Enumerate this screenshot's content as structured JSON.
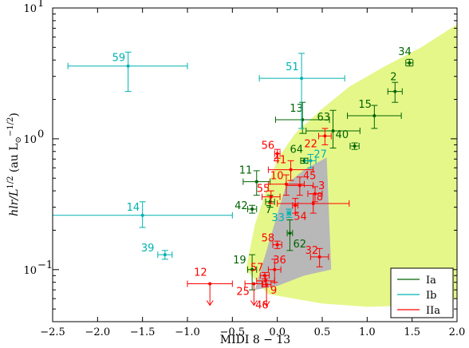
{
  "chart_data": {
    "type": "scatter",
    "title": "",
    "xlabel": "MIDI 8 − 13",
    "ylabel_parts": {
      "main": "hlr/L",
      "exp": "1/2",
      "unit_open": " (au L",
      "unit_sub": "⊙",
      "unit_exp": "−1/2",
      "unit_close": ")"
    },
    "xlim": [
      -2.5,
      2.0
    ],
    "ylim_log": [
      0.04,
      10
    ],
    "y_scale": "log",
    "x_ticks": [
      -2.5,
      -2.0,
      -1.5,
      -1.0,
      -0.5,
      0.0,
      0.5,
      1.0,
      1.5,
      2.0
    ],
    "x_tick_labels": [
      "−2.5",
      "−2.0",
      "−1.5",
      "−1.0",
      "−0.5",
      "0.0",
      "0.5",
      "1.0",
      "1.5",
      "2.0"
    ],
    "y_ticks": [
      0.1,
      1,
      10
    ],
    "y_tick_labels": [
      "10",
      "10",
      "10"
    ],
    "y_tick_exponents": [
      "−1",
      "0",
      "1"
    ],
    "legend": {
      "placement": "bottom-right",
      "entries": [
        {
          "name": "Ia",
          "color": "#006400"
        },
        {
          "name": "Ib",
          "color": "#00b2b2"
        },
        {
          "name": "IIa",
          "color": "#ff0000"
        }
      ]
    },
    "colors": {
      "Ia": "#006400",
      "Ib": "#00b2b2",
      "IIa": "#ff0000",
      "yellow_region": "#e6f78a",
      "gray_region": "#b8b8b8"
    },
    "regions": {
      "yellow": {
        "upper": [
          [
            -0.35,
            0.1
          ],
          [
            -0.25,
            0.22
          ],
          [
            -0.1,
            0.45
          ],
          [
            0.0,
            0.7
          ],
          [
            0.2,
            1.1
          ],
          [
            0.5,
            1.7
          ],
          [
            0.8,
            2.5
          ],
          [
            1.2,
            3.6
          ],
          [
            1.6,
            5.0
          ],
          [
            2.0,
            7.5
          ]
        ],
        "lower": [
          [
            -0.35,
            0.1
          ],
          [
            -0.1,
            0.065
          ],
          [
            0.5,
            0.055
          ],
          [
            1.0,
            0.052
          ],
          [
            1.5,
            0.053
          ],
          [
            2.0,
            0.06
          ]
        ]
      },
      "gray": [
        [
          -0.25,
          0.07
        ],
        [
          0.1,
          0.45
        ],
        [
          0.3,
          0.58
        ],
        [
          0.55,
          0.72
        ],
        [
          0.6,
          0.1
        ],
        [
          0.3,
          0.09
        ],
        [
          0.0,
          0.075
        ],
        [
          -0.25,
          0.07
        ]
      ]
    },
    "series": [
      {
        "name": "Ia",
        "points": [
          {
            "label": "34",
            "x": 1.47,
            "y": 3.8,
            "xerr": 0.04,
            "yerr_lo": 0.2,
            "yerr_hi": 0.25
          },
          {
            "label": "2",
            "x": 1.31,
            "y": 2.3,
            "xerr": 0.08,
            "yerr_lo": 0.4,
            "yerr_hi": 0.4
          },
          {
            "label": "15",
            "x": 1.08,
            "y": 1.5,
            "xerr": 0.3,
            "yerr_lo": 0.3,
            "yerr_hi": 0.3
          },
          {
            "label": "13",
            "x": 0.28,
            "y": 1.4,
            "xerr": 0.3,
            "yerr_lo": 0.3,
            "yerr_hi": 0.5
          },
          {
            "label": "63",
            "x": 0.62,
            "y": 1.15,
            "xerr": 0.3,
            "yerr_lo": 0.3,
            "yerr_hi": 0.5
          },
          {
            "label": "40",
            "x": 0.86,
            "y": 0.88,
            "xerr": 0.05,
            "yerr_lo": 0.05,
            "yerr_hi": 0.05
          },
          {
            "label": "64",
            "x": 0.3,
            "y": 0.68,
            "xerr": 0.04,
            "yerr_lo": 0.03,
            "yerr_hi": 0.03
          },
          {
            "label": "11",
            "x": -0.23,
            "y": 0.47,
            "xerr": 0.15,
            "yerr_lo": 0.1,
            "yerr_hi": 0.1
          },
          {
            "label": "42",
            "x": -0.28,
            "y": 0.29,
            "xerr": 0.05,
            "yerr_lo": 0.02,
            "yerr_hi": 0.02
          },
          {
            "label": "7",
            "x": -0.08,
            "y": 0.33,
            "xerr": 0.05,
            "yerr_lo": 0.03,
            "yerr_hi": 0.04
          },
          {
            "label": "62",
            "x": 0.14,
            "y": 0.19,
            "xerr": 0.03,
            "yerr_lo": 0.05,
            "yerr_hi": 0.05
          },
          {
            "label": "19",
            "x": -0.28,
            "y": 0.1,
            "xerr": 0.05,
            "yerr_lo": 0.03,
            "yerr_hi": 0.03
          }
        ]
      },
      {
        "name": "Ib",
        "points": [
          {
            "label": "59",
            "x": -1.66,
            "y": 3.6,
            "xerr_lo": 0.67,
            "xerr_hi": 0.66,
            "yerr_lo": 1.3,
            "yerr_hi": 1.0
          },
          {
            "label": "51",
            "x": 0.27,
            "y": 2.9,
            "xerr_lo": 0.47,
            "xerr_hi": 0.48,
            "yerr_lo": 1.7,
            "yerr_hi": 1.6
          },
          {
            "label": "27",
            "x": 0.37,
            "y": 0.68,
            "xerr": 0.06,
            "yerr_lo": 0.08,
            "yerr_hi": 0.08
          },
          {
            "label": "14",
            "x": -1.5,
            "y": 0.26,
            "xerr_lo": 1.0,
            "xerr_hi": 1.0,
            "yerr_lo": 0.05,
            "yerr_hi": 0.07
          },
          {
            "label": "33",
            "x": 0.13,
            "y": 0.27,
            "xerr": 0.02,
            "yerr_lo": 0.02,
            "yerr_hi": 0.02
          },
          {
            "label": "39",
            "x": -1.25,
            "y": 0.13,
            "xerr": 0.08,
            "yerr_lo": 0.01,
            "yerr_hi": 0.01
          }
        ]
      },
      {
        "name": "IIa",
        "points": [
          {
            "label": "56",
            "x": 0.0,
            "y": 0.77,
            "xerr": 0.03,
            "yerr_lo": 0.06,
            "yerr_hi": 0.06
          },
          {
            "label": "22",
            "x": 0.53,
            "y": 1.05,
            "xerr": 0.07,
            "yerr_lo": 0.15,
            "yerr_hi": 0.15
          },
          {
            "label": "41",
            "x": 0.15,
            "y": 0.58,
            "xerr": 0.25,
            "yerr_lo": 0.1,
            "yerr_hi": 0.1
          },
          {
            "label": "10",
            "x": 0.1,
            "y": 0.45,
            "xerr": 0.2,
            "yerr_lo": 0.08,
            "yerr_hi": 0.08
          },
          {
            "label": "45",
            "x": 0.25,
            "y": 0.44,
            "xerr": 0.15,
            "yerr_lo": 0.07,
            "yerr_hi": 0.07
          },
          {
            "label": "55",
            "x": -0.07,
            "y": 0.36,
            "xerr": 0.1,
            "yerr_lo": 0.04,
            "yerr_hi": 0.04
          },
          {
            "label": "3",
            "x": 0.42,
            "y": 0.38,
            "xerr": 0.08,
            "yerr_lo": 0.05,
            "yerr_hi": 0.05
          },
          {
            "label": "8",
            "x": 0.4,
            "y": 0.32,
            "xerr": 0.4,
            "yerr_lo": 0.05,
            "yerr_hi": 0.06
          },
          {
            "label": "54",
            "x": 0.2,
            "y": 0.31,
            "xerr": 0.03,
            "yerr_lo": 0.04,
            "yerr_hi": 0.04
          },
          {
            "label": "58",
            "x": 0.0,
            "y": 0.155,
            "xerr": 0.05,
            "yerr_lo": 0.01,
            "yerr_hi": 0.01
          },
          {
            "label": "32",
            "x": 0.47,
            "y": 0.125,
            "xerr": 0.1,
            "yerr_lo": 0.02,
            "yerr_hi": 0.02
          },
          {
            "label": "57",
            "x": -0.14,
            "y": 0.09,
            "xerr": 0.05,
            "yerr_lo": 0.005,
            "yerr_hi": 0.005
          },
          {
            "label": "36",
            "x": -0.03,
            "y": 0.1,
            "xerr": 0.07,
            "yerr_lo": 0.02,
            "yerr_hi": 0.02
          },
          {
            "label": "12",
            "x": -0.75,
            "y": 0.078,
            "xerr": 0.25,
            "upper_limit": true
          },
          {
            "label": "25",
            "x": -0.26,
            "y": 0.078,
            "xerr": 0.1,
            "upper_limit": true
          },
          {
            "label": "9",
            "x": -0.13,
            "y": 0.082,
            "xerr": 0.1,
            "yerr_lo": 0.008,
            "yerr_hi": 0.008
          },
          {
            "label": "46",
            "x": -0.12,
            "y": 0.077,
            "xerr": 0.05,
            "upper_limit": true
          }
        ]
      }
    ],
    "label_offsets_note": ""
  }
}
